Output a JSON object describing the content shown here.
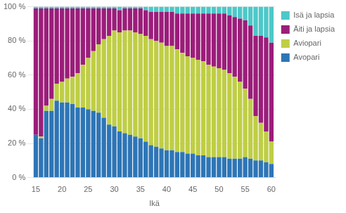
{
  "chart_data": {
    "type": "bar",
    "stacked": true,
    "xlabel": "Ikä",
    "x": [
      15,
      16,
      17,
      18,
      19,
      20,
      21,
      22,
      23,
      24,
      25,
      26,
      27,
      28,
      29,
      30,
      31,
      32,
      33,
      34,
      35,
      36,
      37,
      38,
      39,
      40,
      41,
      42,
      43,
      44,
      45,
      46,
      47,
      48,
      49,
      50,
      51,
      52,
      53,
      54,
      55,
      56,
      57,
      58,
      59,
      60
    ],
    "series": [
      {
        "name": "Avopari",
        "color": "#2E75B6",
        "values": [
          25,
          23,
          39,
          39,
          45,
          44,
          44,
          43,
          41,
          41,
          40,
          39,
          38,
          35,
          31,
          30,
          27,
          26,
          25,
          24,
          23,
          21,
          19,
          18,
          17,
          16,
          16,
          15,
          15,
          14,
          14,
          13,
          13,
          12,
          12,
          12,
          12,
          11,
          11,
          11,
          12,
          11,
          10,
          10,
          9,
          8
        ]
      },
      {
        "name": "Aviopari",
        "color": "#BFCE45",
        "values": [
          0,
          1,
          3,
          7,
          10,
          12,
          14,
          16,
          20,
          25,
          30,
          35,
          40,
          46,
          52,
          56,
          58,
          60,
          61,
          61,
          61,
          62,
          62,
          62,
          62,
          61,
          61,
          60,
          58,
          57,
          56,
          56,
          55,
          54,
          53,
          52,
          51,
          50,
          48,
          45,
          40,
          35,
          26,
          22,
          18,
          13
        ]
      },
      {
        "name": "Äiti ja lapsia",
        "color": "#9B1D7A",
        "values": [
          74,
          75,
          57,
          53,
          44,
          43,
          41,
          40,
          38,
          33,
          29,
          25,
          21,
          18,
          16,
          13,
          13,
          13,
          13,
          14,
          15,
          15,
          16,
          17,
          18,
          20,
          20,
          21,
          23,
          25,
          26,
          27,
          28,
          30,
          31,
          32,
          33,
          34,
          35,
          37,
          40,
          43,
          47,
          51,
          55,
          58
        ]
      },
      {
        "name": "Isä ja lapsia",
        "color": "#4DC8C8",
        "values": [
          1,
          1,
          1,
          1,
          1,
          1,
          1,
          1,
          1,
          1,
          1,
          1,
          1,
          1,
          1,
          1,
          2,
          1,
          1,
          1,
          1,
          2,
          3,
          3,
          3,
          3,
          3,
          4,
          4,
          4,
          4,
          4,
          4,
          4,
          4,
          4,
          4,
          5,
          6,
          7,
          8,
          11,
          17,
          17,
          18,
          21
        ]
      }
    ],
    "xlim": [
      14.5,
      60.8
    ],
    "xticks": [
      15,
      20,
      25,
      30,
      35,
      40,
      45,
      50,
      55,
      60
    ],
    "ylim": [
      0,
      100
    ],
    "yticks": [
      {
        "value": 0,
        "label": "0 %"
      },
      {
        "value": 20,
        "label": "20 %"
      },
      {
        "value": 40,
        "label": "40 %"
      },
      {
        "value": 60,
        "label": "60 %"
      },
      {
        "value": 80,
        "label": "80 %"
      },
      {
        "value": 100,
        "label": "100 %"
      }
    ],
    "grid": true,
    "legend": "right"
  }
}
